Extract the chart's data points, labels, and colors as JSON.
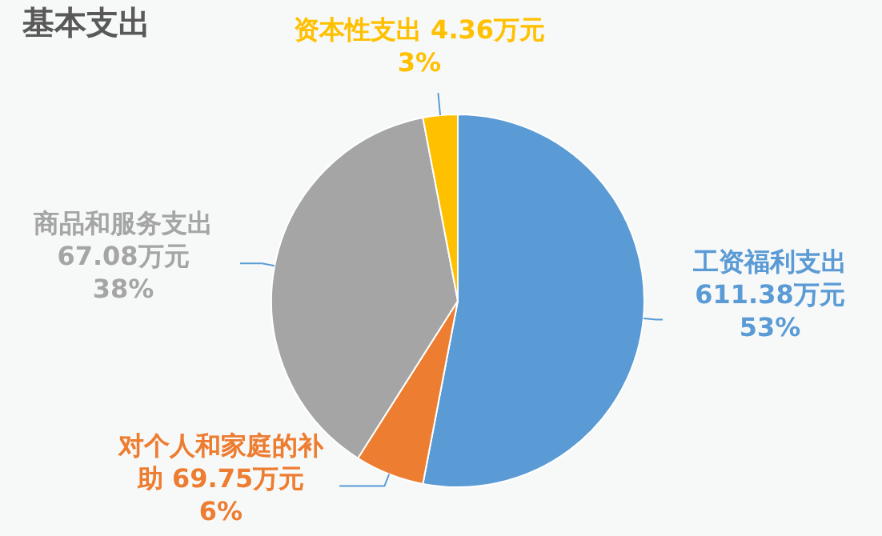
{
  "chart_data": {
    "type": "pie",
    "title": "基本支出",
    "categories": [
      "工资福利支出",
      "对个人和家庭的补助",
      "商品和服务支出",
      "资本性支出"
    ],
    "values": [
      53,
      6,
      38,
      3
    ],
    "colors": [
      "#5b9bd5",
      "#ed7d31",
      "#a5a5a5",
      "#ffc000"
    ],
    "value_labels": [
      "611.38万元\n53%",
      "69.75万元\n6%",
      "67.08万元\n38%",
      "4.36万元\n3%"
    ],
    "legend": false
  }
}
